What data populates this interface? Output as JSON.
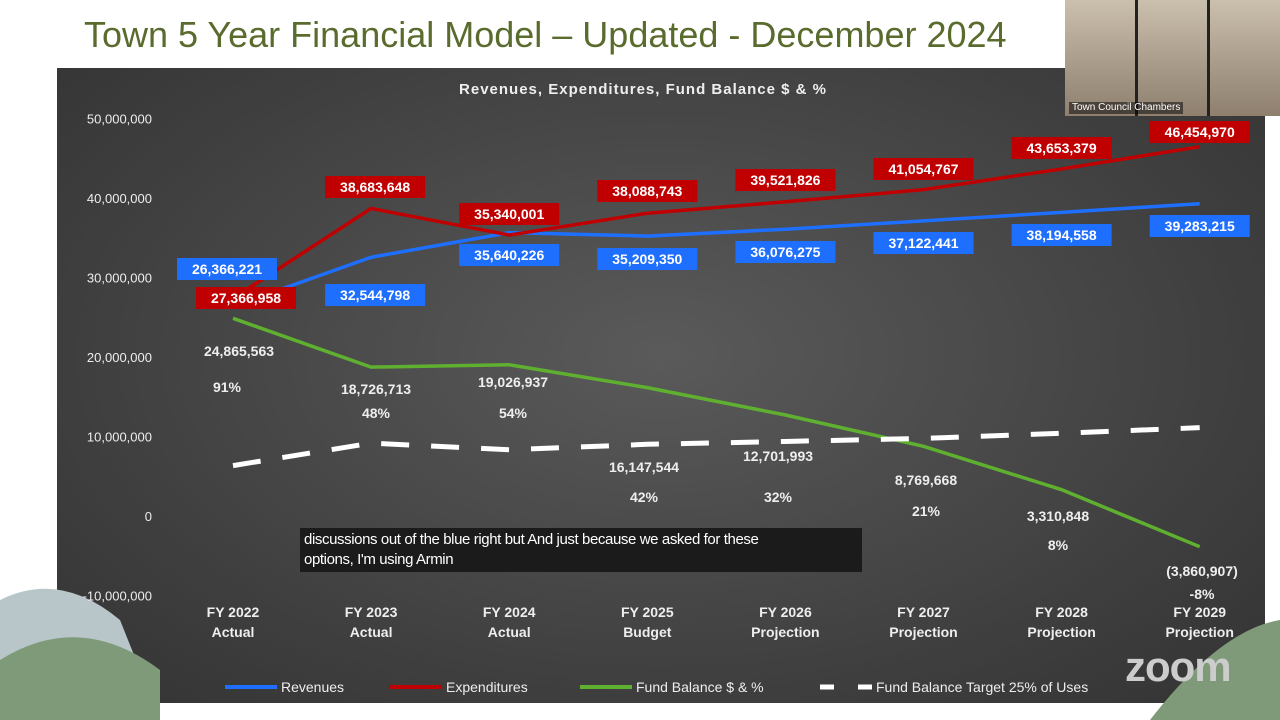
{
  "slide_title": "Town 5 Year Financial Model – Updated - December 2024",
  "video": {
    "label": "Town Council Chambers"
  },
  "caption": {
    "line1": "discussions out of the blue right but And just because we asked for these",
    "line2": "options, I'm using Armin"
  },
  "zoom_logo": "zoom",
  "chart_data": {
    "type": "line",
    "title": "Revenues, Expenditures, Fund Balance $ & %",
    "categories": [
      [
        "FY 2022",
        "Actual"
      ],
      [
        "FY 2023",
        "Actual"
      ],
      [
        "FY 2024",
        "Actual"
      ],
      [
        "FY 2025",
        "Budget"
      ],
      [
        "FY 2026",
        "Projection"
      ],
      [
        "FY 2027",
        "Projection"
      ],
      [
        "FY 2028",
        "Projection"
      ],
      [
        "FY 2029",
        "Projection"
      ]
    ],
    "ylim": [
      -10000000,
      50000000
    ],
    "yticks": [
      {
        "v": 50000000,
        "l": "50,000,000"
      },
      {
        "v": 40000000,
        "l": "40,000,000"
      },
      {
        "v": 30000000,
        "l": "30,000,000"
      },
      {
        "v": 20000000,
        "l": "20,000,000"
      },
      {
        "v": 10000000,
        "l": "10,000,000"
      },
      {
        "v": 0,
        "l": "0"
      },
      {
        "v": -10000000,
        "l": "-10,000,000"
      }
    ],
    "series": [
      {
        "name": "Revenues",
        "color": "#1f6fff",
        "values": [
          26366221,
          32544798,
          35640226,
          35209350,
          36076275,
          37122441,
          38194558,
          39283215
        ],
        "labels": [
          "26,366,221",
          "32,544,798",
          "35,640,226",
          "35,209,350",
          "36,076,275",
          "37,122,441",
          "38,194,558",
          "39,283,215"
        ]
      },
      {
        "name": "Expenditures",
        "color": "#c00000",
        "values": [
          27366958,
          38683648,
          35340001,
          38088743,
          39521826,
          41054767,
          43653379,
          46454970
        ],
        "labels": [
          "27,366,958",
          "38,683,648",
          "35,340,001",
          "38,088,743",
          "39,521,826",
          "41,054,767",
          "43,653,379",
          "46,454,970"
        ]
      },
      {
        "name": "Fund Balance $ & %",
        "color": "#5fb030",
        "values": [
          24865563,
          18726713,
          19026937,
          16147544,
          12701993,
          8769668,
          3310848,
          -3860907
        ],
        "labels": [
          "24,865,563",
          "18,726,713",
          "19,026,937",
          "16,147,544",
          "12,701,993",
          "8,769,668",
          "3,310,848",
          "(3,860,907)"
        ],
        "percents": [
          "91%",
          "48%",
          "54%",
          "42%",
          "32%",
          "21%",
          "8%",
          "-8%"
        ]
      },
      {
        "name": "Fund Balance Target 25% of Uses",
        "color": "#ffffff",
        "dashed": true,
        "values": [
          6841740,
          9670912,
          8835000,
          9522186,
          9880457,
          10263692,
          10913345,
          11613743
        ]
      }
    ]
  }
}
